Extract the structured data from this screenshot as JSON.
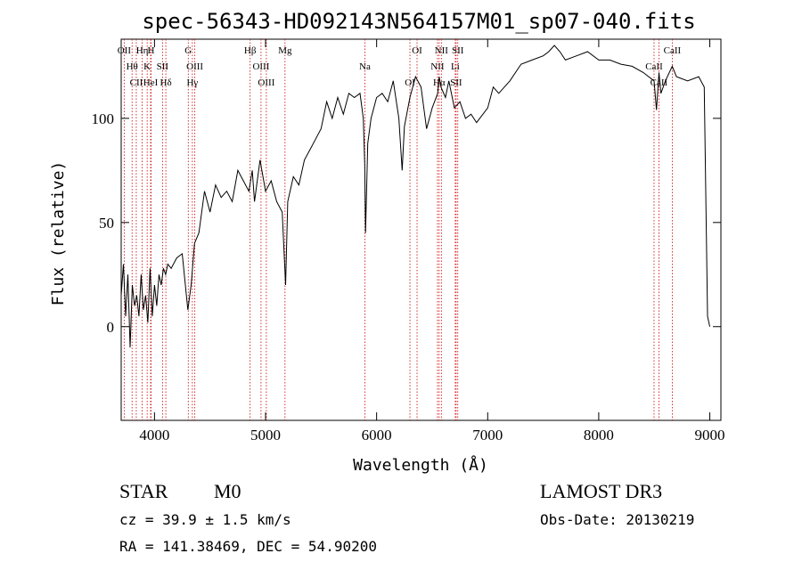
{
  "chart_data": {
    "type": "line",
    "title": "spec-56343-HD092143N564157M01_sp07-040.fits",
    "xlabel": "Wavelength (Å)",
    "ylabel": "Flux (relative)",
    "xlim": [
      3700,
      9100
    ],
    "ylim": [
      -45,
      138
    ],
    "xticks": [
      4000,
      5000,
      6000,
      7000,
      8000,
      9000
    ],
    "yticks": [
      0,
      50,
      100
    ],
    "series": [
      {
        "name": "spectrum",
        "x": [
          3700,
          3720,
          3740,
          3760,
          3780,
          3800,
          3820,
          3840,
          3860,
          3880,
          3900,
          3920,
          3940,
          3960,
          3980,
          4000,
          4020,
          4040,
          4060,
          4080,
          4100,
          4120,
          4150,
          4200,
          4250,
          4300,
          4330,
          4360,
          4400,
          4450,
          4500,
          4550,
          4600,
          4650,
          4700,
          4750,
          4800,
          4850,
          4880,
          4900,
          4950,
          5000,
          5050,
          5100,
          5150,
          5180,
          5200,
          5250,
          5300,
          5350,
          5400,
          5450,
          5500,
          5550,
          5600,
          5650,
          5700,
          5750,
          5800,
          5850,
          5880,
          5893,
          5900,
          5920,
          5950,
          6000,
          6050,
          6100,
          6150,
          6200,
          6230,
          6250,
          6300,
          6350,
          6400,
          6450,
          6500,
          6550,
          6563,
          6580,
          6620,
          6650,
          6700,
          6750,
          6800,
          6850,
          6900,
          7000,
          7050,
          7100,
          7200,
          7300,
          7400,
          7500,
          7550,
          7600,
          7650,
          7700,
          7800,
          7900,
          8000,
          8100,
          8200,
          8300,
          8400,
          8498,
          8520,
          8542,
          8560,
          8600,
          8662,
          8700,
          8800,
          8900,
          8950,
          8980,
          9000
        ],
        "values": [
          15,
          30,
          5,
          25,
          -10,
          20,
          10,
          15,
          5,
          25,
          8,
          15,
          2,
          28,
          5,
          20,
          10,
          25,
          20,
          28,
          25,
          30,
          28,
          33,
          35,
          8,
          20,
          40,
          45,
          65,
          55,
          68,
          62,
          65,
          60,
          75,
          70,
          65,
          75,
          60,
          80,
          65,
          70,
          60,
          55,
          20,
          60,
          72,
          68,
          80,
          85,
          90,
          95,
          108,
          100,
          110,
          102,
          112,
          110,
          112,
          100,
          78,
          45,
          88,
          100,
          110,
          112,
          108,
          118,
          100,
          75,
          96,
          110,
          120,
          115,
          95,
          105,
          112,
          120,
          115,
          110,
          118,
          105,
          108,
          100,
          102,
          98,
          105,
          115,
          112,
          118,
          126,
          128,
          130,
          132,
          135,
          132,
          128,
          130,
          132,
          128,
          128,
          126,
          125,
          122,
          118,
          104,
          122,
          112,
          118,
          125,
          120,
          118,
          120,
          115,
          5,
          0
        ]
      }
    ],
    "lines": [
      {
        "name": "OII",
        "x": 3727
      },
      {
        "name": "Hθ",
        "x": 3798
      },
      {
        "name": "CII",
        "x": 3836
      },
      {
        "name": "Hη",
        "x": 3889
      },
      {
        "name": "K",
        "x": 3934
      },
      {
        "name": "HeI",
        "x": 3965
      },
      {
        "name": "H",
        "x": 3969
      },
      {
        "name": "SII",
        "x": 4072
      },
      {
        "name": "Hδ",
        "x": 4102
      },
      {
        "name": "G",
        "x": 4304
      },
      {
        "name": "OIII",
        "x": 4363
      },
      {
        "name": "Hγ",
        "x": 4341
      },
      {
        "name": "Hβ",
        "x": 4861
      },
      {
        "name": "OIII",
        "x": 4959
      },
      {
        "name": "OIII",
        "x": 5007
      },
      {
        "name": "Mg",
        "x": 5175
      },
      {
        "name": "Na",
        "x": 5894
      },
      {
        "name": "OI",
        "x": 6300
      },
      {
        "name": "OI",
        "x": 6364
      },
      {
        "name": "NII",
        "x": 6548
      },
      {
        "name": "Hα",
        "x": 6563
      },
      {
        "name": "NII",
        "x": 6583
      },
      {
        "name": "Li",
        "x": 6708
      },
      {
        "name": "SII",
        "x": 6716
      },
      {
        "name": "SII",
        "x": 6731
      },
      {
        "name": "CaII",
        "x": 8498
      },
      {
        "name": "CaII",
        "x": 8542
      },
      {
        "name": "CaII",
        "x": 8662
      }
    ]
  },
  "info": {
    "class": "STAR",
    "subclass": "M0",
    "survey": "LAMOST DR3",
    "cz": "cz = 39.9 ± 1.5 km/s",
    "obs_date": "Obs-Date: 20130219",
    "radec": "RA = 141.38469, DEC =  54.90200"
  }
}
